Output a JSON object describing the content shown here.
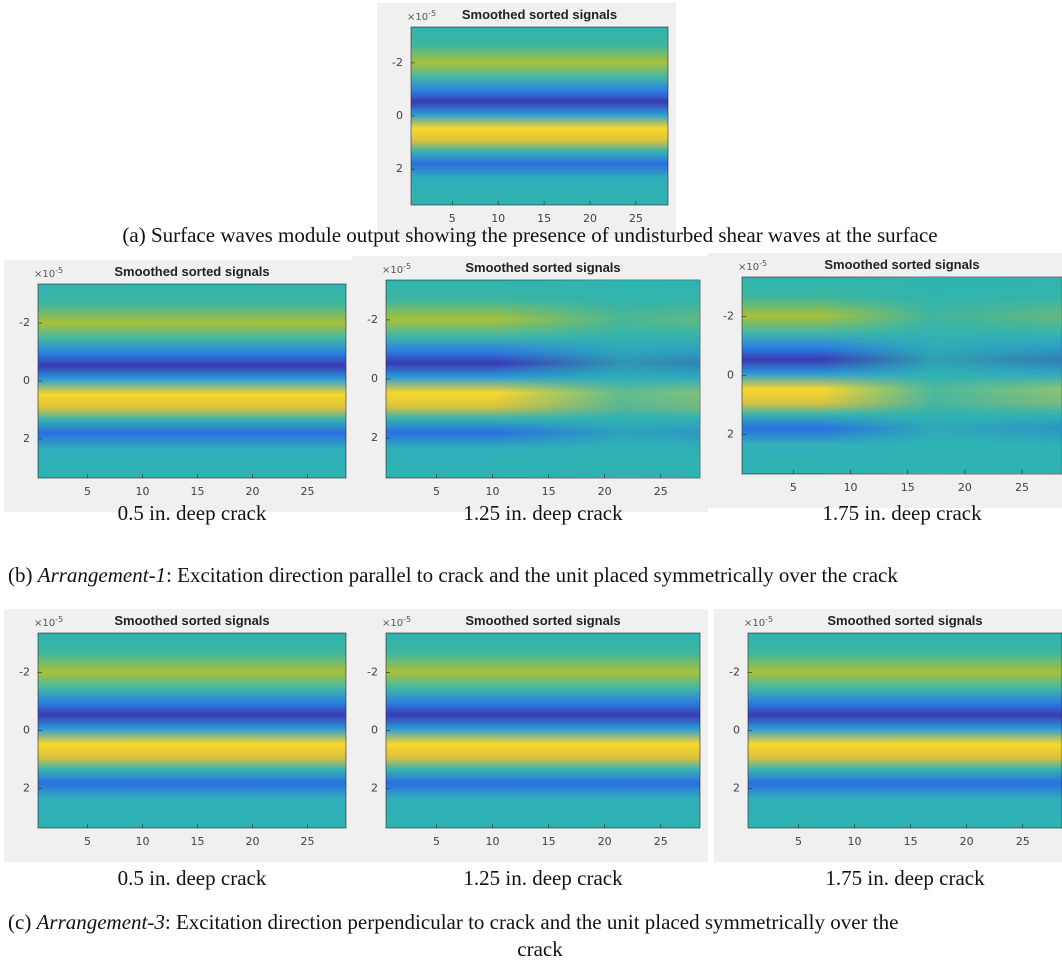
{
  "figure": {
    "parts": [
      {
        "panels": [
          {
            "title": "Smoothed sorted signals",
            "multiplier": "×10",
            "exponent": "-5",
            "xlim": [
              0.5,
              28.5
            ],
            "ylim": [
              -3.35,
              3.35
            ],
            "xticks": [
              5,
              10,
              15,
              20,
              25
            ],
            "yticks": [
              -2,
              0,
              2
            ]
          }
        ],
        "caption": {
          "label": "(a)",
          "text": "Surface waves module output showing the presence of undisturbed shear waves at the surface"
        }
      },
      {
        "panels": [
          {
            "title": "Smoothed sorted signals",
            "multiplier": "×10",
            "exponent": "-5",
            "xlim": [
              0.5,
              28.5
            ],
            "ylim": [
              -3.35,
              3.35
            ],
            "xticks": [
              5,
              10,
              15,
              20,
              25
            ],
            "yticks": [
              -2,
              0,
              2
            ],
            "caption": "0.5 in. deep crack"
          },
          {
            "title": "Smoothed sorted signals",
            "multiplier": "×10",
            "exponent": "-5",
            "xlim": [
              0.5,
              28.5
            ],
            "ylim": [
              -3.35,
              3.35
            ],
            "xticks": [
              5,
              10,
              15,
              20,
              25
            ],
            "yticks": [
              -2,
              0,
              2
            ],
            "caption": "1.25 in. deep crack"
          },
          {
            "title": "Smoothed sorted signals",
            "multiplier": "×10",
            "exponent": "-5",
            "xlim": [
              0.5,
              28.5
            ],
            "ylim": [
              -3.35,
              3.35
            ],
            "xticks": [
              5,
              10,
              15,
              20,
              25
            ],
            "yticks": [
              -2,
              0,
              2
            ],
            "caption": "1.75 in. deep crack"
          }
        ],
        "caption": {
          "label": "(b)",
          "emphasis": "Arrangement-1",
          "text": ": Excitation direction parallel to crack and the unit placed symmetrically over the crack"
        }
      },
      {
        "panels": [
          {
            "title": "Smoothed sorted signals",
            "multiplier": "×10",
            "exponent": "-5",
            "xlim": [
              0.5,
              28.5
            ],
            "ylim": [
              -3.35,
              3.35
            ],
            "xticks": [
              5,
              10,
              15,
              20,
              25
            ],
            "yticks": [
              -2,
              0,
              2
            ],
            "caption": "0.5 in. deep crack"
          },
          {
            "title": "Smoothed sorted signals",
            "multiplier": "×10",
            "exponent": "-5",
            "xlim": [
              0.5,
              28.5
            ],
            "ylim": [
              -3.35,
              3.35
            ],
            "xticks": [
              5,
              10,
              15,
              20,
              25
            ],
            "yticks": [
              -2,
              0,
              2
            ],
            "caption": "1.25 in. deep crack"
          },
          {
            "title": "Smoothed sorted signals",
            "multiplier": "×10",
            "exponent": "-5",
            "xlim": [
              0.5,
              28.5
            ],
            "ylim": [
              -3.35,
              3.35
            ],
            "xticks": [
              5,
              10,
              15,
              20,
              25
            ],
            "yticks": [
              -2,
              0,
              2
            ],
            "caption": "1.75 in. deep crack"
          }
        ],
        "caption": {
          "label": "(c)",
          "emphasis": "Arrangement-3",
          "text": ": Excitation direction perpendicular to crack and the unit placed symmetrically over the",
          "continuation": "crack"
        }
      }
    ]
  }
}
